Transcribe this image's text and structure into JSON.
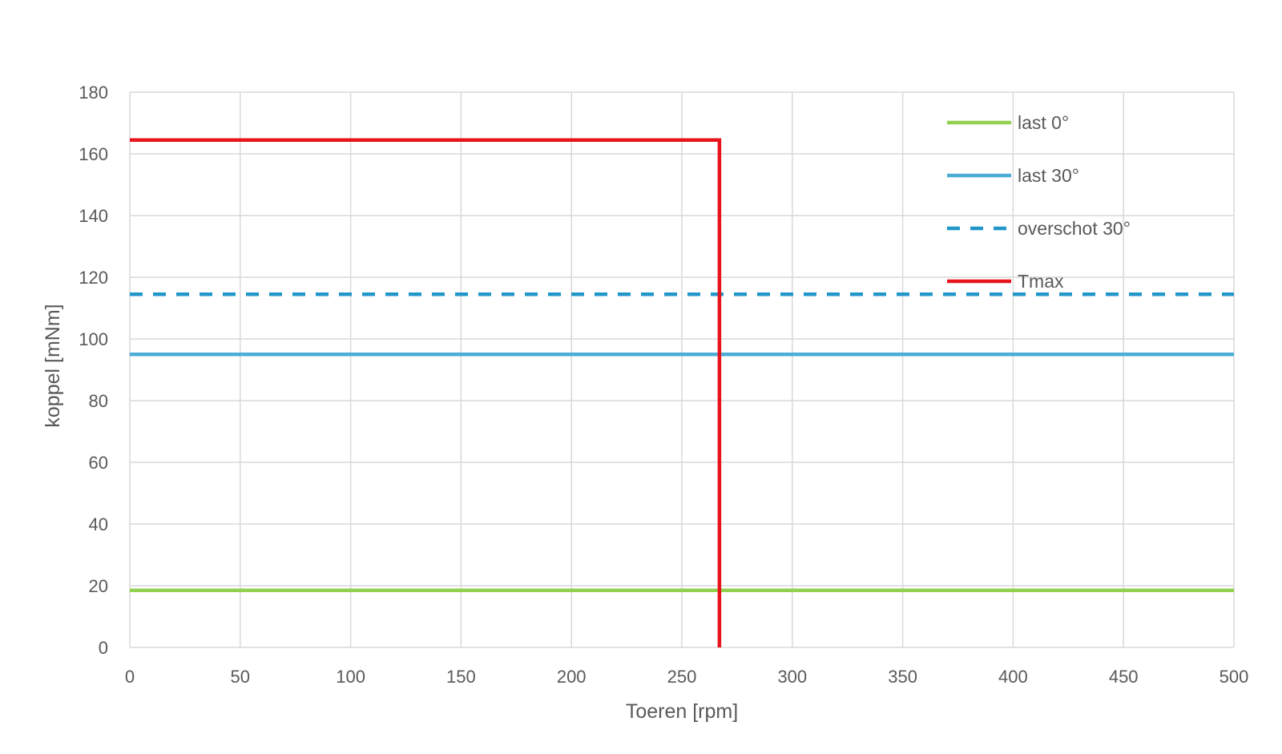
{
  "chart_data": {
    "type": "line",
    "xlabel": "Toeren [rpm]",
    "ylabel": "koppel [mNm]",
    "xlim": [
      0,
      500
    ],
    "ylim": [
      0,
      180
    ],
    "x_ticks": [
      0,
      50,
      100,
      150,
      200,
      250,
      300,
      350,
      400,
      450,
      500
    ],
    "y_ticks": [
      0,
      20,
      40,
      60,
      80,
      100,
      120,
      140,
      160,
      180
    ],
    "grid": true,
    "legend_position": "top-right",
    "series": [
      {
        "name": "last 0°",
        "color": "#92d050",
        "style": "solid",
        "points": [
          [
            0,
            18.5
          ],
          [
            500,
            18.5
          ]
        ]
      },
      {
        "name": "last 30°",
        "color": "#4bacd6",
        "style": "solid",
        "points": [
          [
            0,
            95
          ],
          [
            500,
            95
          ]
        ]
      },
      {
        "name": "overschot 30°",
        "color": "#2196c9",
        "style": "dashed",
        "points": [
          [
            0,
            114.5
          ],
          [
            500,
            114.5
          ]
        ]
      },
      {
        "name": "Tmax",
        "color": "#e8141c",
        "style": "solid",
        "points": [
          [
            0,
            164.5
          ],
          [
            267,
            164.5
          ],
          [
            267,
            0
          ]
        ]
      }
    ]
  }
}
